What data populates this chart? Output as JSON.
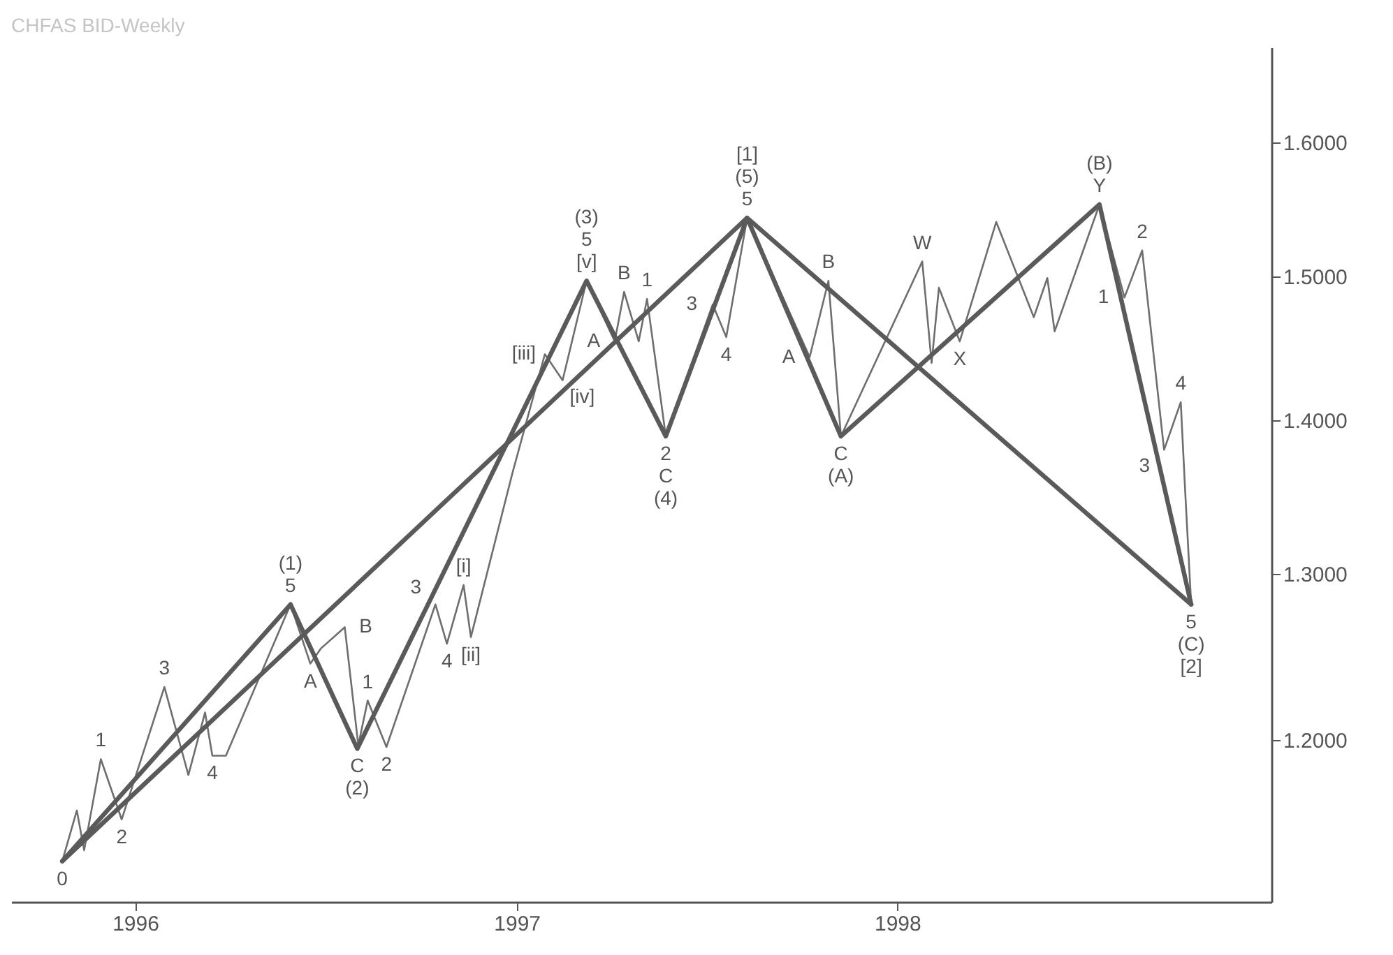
{
  "chart_data": {
    "type": "line",
    "title": "CHFAS BID-Weekly",
    "xlim": [
      "1995-09-04",
      "1998-12-26"
    ],
    "ylim": [
      1.11,
      1.675
    ],
    "log": "y",
    "xticks": [
      "1996",
      "1997",
      "1998"
    ],
    "yticks": [
      {
        "value": 1.2,
        "label": "1.2000"
      },
      {
        "value": 1.3,
        "label": "1.3000"
      },
      {
        "value": 1.4,
        "label": "1.4000"
      },
      {
        "value": 1.5,
        "label": "1.5000"
      },
      {
        "value": 1.6,
        "label": "1.6000"
      }
    ],
    "series": [
      {
        "color": "#6e6e6e",
        "x": [
          "1995-10-23",
          "1995-11-06",
          "1995-11-13",
          "1995-11-29",
          "1995-12-19",
          "1996-01-29",
          "1996-02-21",
          "1996-03-08",
          "1996-03-15",
          "1996-03-28",
          "1996-05-29",
          "1996-06-17",
          "1996-06-27",
          "1996-07-20",
          "1996-08-02",
          "1996-08-11",
          "1996-08-29",
          "1996-10-15",
          "1996-10-26",
          "1996-11-11",
          "1996-11-18",
          "1996-12-28",
          "1997-01-28",
          "1997-02-14",
          "1997-03-09",
          "1997-04-05",
          "1997-04-14",
          "1997-04-28",
          "1997-05-06",
          "1997-05-24",
          "1997-07-08",
          "1997-07-21",
          "1997-08-10",
          "1997-10-09",
          "1997-10-27",
          "1997-11-08",
          "1998-01-25",
          "1998-02-03",
          "1998-02-10",
          "1998-03-02",
          "1998-04-06",
          "1998-05-12",
          "1998-05-25",
          "1998-06-01",
          "1998-07-14",
          "1998-08-07",
          "1998-08-24",
          "1998-09-14",
          "1998-09-30",
          "1998-10-04",
          "1998-10-10"
        ],
        "values": [
          1.132,
          1.16,
          1.138,
          1.189,
          1.155,
          1.231,
          1.18,
          1.216,
          1.191,
          1.191,
          1.281,
          1.245,
          1.254,
          1.267,
          1.197,
          1.223,
          1.196,
          1.281,
          1.257,
          1.293,
          1.261,
          1.365,
          1.445,
          1.427,
          1.497,
          1.454,
          1.489,
          1.454,
          1.484,
          1.389,
          1.48,
          1.457,
          1.543,
          1.443,
          1.497,
          1.389,
          1.511,
          1.439,
          1.492,
          1.454,
          1.54,
          1.471,
          1.499,
          1.461,
          1.553,
          1.485,
          1.519,
          1.38,
          1.412,
          1.356,
          1.281
        ]
      },
      {
        "color": "#5a5a5a",
        "x": [
          "1995-10-23",
          "1996-05-29",
          "1996-08-01",
          "1997-03-09",
          "1997-05-24",
          "1997-08-10",
          "1997-11-08",
          "1998-07-14",
          "1998-10-10"
        ],
        "values": [
          1.132,
          1.281,
          1.195,
          1.497,
          1.389,
          1.543,
          1.389,
          1.553,
          1.281
        ]
      },
      {
        "color": "#5a5a5a",
        "x": [
          "1995-10-23",
          "1997-08-10",
          "1998-10-10"
        ],
        "values": [
          1.132,
          1.543,
          1.281
        ]
      }
    ],
    "annotations": [
      {
        "text": "0",
        "x": "1995-10-23",
        "y": 1.132
      },
      {
        "text": "1",
        "x": "1995-11-29",
        "y": 1.189
      },
      {
        "text": "2",
        "x": "1995-12-19",
        "y": 1.155
      },
      {
        "text": "3",
        "x": "1996-01-29",
        "y": 1.231
      },
      {
        "text": "4",
        "x": "1996-03-15",
        "y": 1.191
      },
      {
        "text": "(1)",
        "x": "1996-05-29",
        "y": 1.281
      },
      {
        "text": "5",
        "x": "1996-05-29",
        "y": 1.281
      },
      {
        "text": "A",
        "x": "1996-06-17",
        "y": 1.245
      },
      {
        "text": "B",
        "x": "1996-07-20",
        "y": 1.267
      },
      {
        "text": "1",
        "x": "1996-08-11",
        "y": 1.223
      },
      {
        "text": "C",
        "x": "1996-08-01",
        "y": 1.195
      },
      {
        "text": "(2)",
        "x": "1996-08-01",
        "y": 1.195
      },
      {
        "text": "2",
        "x": "1996-08-29",
        "y": 1.196
      },
      {
        "text": "3",
        "x": "1996-10-15",
        "y": 1.281
      },
      {
        "text": "[i]",
        "x": "1996-11-11",
        "y": 1.293
      },
      {
        "text": "4",
        "x": "1996-10-26",
        "y": 1.257
      },
      {
        "text": "[ii]",
        "x": "1996-11-18",
        "y": 1.261
      },
      {
        "text": "(3)",
        "x": "1997-03-09",
        "y": 1.497
      },
      {
        "text": "5",
        "x": "1997-03-09",
        "y": 1.497
      },
      {
        "text": "[v]",
        "x": "1997-03-09",
        "y": 1.497
      },
      {
        "text": "[iii]",
        "x": "1997-01-28",
        "y": 1.445
      },
      {
        "text": "[iv]",
        "x": "1997-02-14",
        "y": 1.427
      },
      {
        "text": "A",
        "x": "1997-04-05",
        "y": 1.454
      },
      {
        "text": "B",
        "x": "1997-04-14",
        "y": 1.489
      },
      {
        "text": "1",
        "x": "1997-05-06",
        "y": 1.484
      },
      {
        "text": "2",
        "x": "1997-05-24",
        "y": 1.389
      },
      {
        "text": "C",
        "x": "1997-05-24",
        "y": 1.389
      },
      {
        "text": "(4)",
        "x": "1997-05-24",
        "y": 1.389
      },
      {
        "text": "3",
        "x": "1997-07-08",
        "y": 1.48
      },
      {
        "text": "4",
        "x": "1997-07-21",
        "y": 1.457
      },
      {
        "text": "[1]",
        "x": "1997-08-10",
        "y": 1.543
      },
      {
        "text": "(5)",
        "x": "1997-08-10",
        "y": 1.543
      },
      {
        "text": "5",
        "x": "1997-08-10",
        "y": 1.543
      },
      {
        "text": "A",
        "x": "1997-10-09",
        "y": 1.443
      },
      {
        "text": "B",
        "x": "1997-10-27",
        "y": 1.497
      },
      {
        "text": "C",
        "x": "1997-11-08",
        "y": 1.389
      },
      {
        "text": "(A)",
        "x": "1997-11-08",
        "y": 1.389
      },
      {
        "text": "W",
        "x": "1998-01-25",
        "y": 1.511
      },
      {
        "text": "X",
        "x": "1998-03-02",
        "y": 1.454
      },
      {
        "text": "(B)",
        "x": "1998-07-14",
        "y": 1.553
      },
      {
        "text": "Y",
        "x": "1998-07-14",
        "y": 1.553
      },
      {
        "text": "1",
        "x": "1998-08-07",
        "y": 1.485
      },
      {
        "text": "2",
        "x": "1998-08-24",
        "y": 1.519
      },
      {
        "text": "3",
        "x": "1998-09-14",
        "y": 1.38
      },
      {
        "text": "4",
        "x": "1998-09-30",
        "y": 1.412
      },
      {
        "text": "5",
        "x": "1998-10-10",
        "y": 1.281
      },
      {
        "text": "(C)",
        "x": "1998-10-10",
        "y": 1.281
      },
      {
        "text": "[2]",
        "x": "1998-10-10",
        "y": 1.281
      }
    ]
  }
}
